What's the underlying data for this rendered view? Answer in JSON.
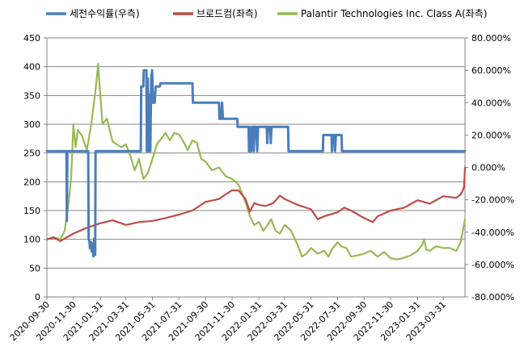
{
  "chart_data": {
    "type": "line",
    "x_ticks": [
      "2020-09-30",
      "2020-11-30",
      "2021-01-31",
      "2021-03-31",
      "2021-05-31",
      "2021-07-31",
      "2021-09-30",
      "2021-11-30",
      "2022-01-31",
      "2022-03-31",
      "2022-05-31",
      "2022-07-31",
      "2022-09-30",
      "2022-11-30",
      "2023-01-31",
      "2023-03-31"
    ],
    "x_range": [
      "2020-09-30",
      "2023-05-20"
    ],
    "y_left": {
      "range": [
        0,
        450
      ],
      "ticks": [
        "0",
        "50",
        "100",
        "150",
        "200",
        "250",
        "300",
        "350",
        "400",
        "450"
      ]
    },
    "y_right": {
      "range": [
        -80,
        80
      ],
      "ticks": [
        "-80.000%",
        "-60.000%",
        "-40.000%",
        "-20.000%",
        "0.000%",
        "20.000%",
        "40.000%",
        "60.000%",
        "80.000%"
      ]
    },
    "grid": true,
    "legend_position": "top",
    "series": [
      {
        "name": "세전수익률(우측)",
        "axis": "right",
        "color": "#4a7ebb",
        "points": [
          [
            "2020-09-30",
            10
          ],
          [
            "2020-11-14",
            10
          ],
          [
            "2020-11-15",
            -33
          ],
          [
            "2020-11-16",
            10
          ],
          [
            "2021-01-03",
            10
          ],
          [
            "2021-01-04",
            -44
          ],
          [
            "2021-01-06",
            -46
          ],
          [
            "2021-01-07",
            -50
          ],
          [
            "2021-01-09",
            -46
          ],
          [
            "2021-01-11",
            -52
          ],
          [
            "2021-01-13",
            -47
          ],
          [
            "2021-01-15",
            -55
          ],
          [
            "2021-01-17",
            -44
          ],
          [
            "2021-01-19",
            -54
          ],
          [
            "2021-01-20",
            10
          ],
          [
            "2021-05-04",
            10
          ],
          [
            "2021-05-05",
            50
          ],
          [
            "2021-05-10",
            50
          ],
          [
            "2021-05-11",
            60
          ],
          [
            "2021-05-17",
            60
          ],
          [
            "2021-05-18",
            10
          ],
          [
            "2021-05-20",
            55
          ],
          [
            "2021-05-22",
            10
          ],
          [
            "2021-05-24",
            45
          ],
          [
            "2021-05-26",
            10
          ],
          [
            "2021-05-28",
            55
          ],
          [
            "2021-05-30",
            60
          ],
          [
            "2021-06-01",
            40
          ],
          [
            "2021-06-05",
            40
          ],
          [
            "2021-06-07",
            50
          ],
          [
            "2021-06-17",
            50
          ],
          [
            "2021-06-18",
            52
          ],
          [
            "2021-08-31",
            52
          ],
          [
            "2021-09-01",
            40
          ],
          [
            "2021-10-31",
            40
          ],
          [
            "2021-11-01",
            30
          ],
          [
            "2021-11-05",
            30
          ],
          [
            "2021-11-07",
            40
          ],
          [
            "2021-11-09",
            30
          ],
          [
            "2021-12-12",
            30
          ],
          [
            "2021-12-13",
            25
          ],
          [
            "2022-01-07",
            25
          ],
          [
            "2022-01-08",
            10
          ],
          [
            "2022-01-10",
            25
          ],
          [
            "2022-01-13",
            10
          ],
          [
            "2022-01-15",
            25
          ],
          [
            "2022-01-18",
            25
          ],
          [
            "2022-01-19",
            10
          ],
          [
            "2022-01-21",
            25
          ],
          [
            "2022-01-25",
            25
          ],
          [
            "2022-01-27",
            10
          ],
          [
            "2022-01-29",
            25
          ],
          [
            "2022-02-18",
            25
          ],
          [
            "2022-02-19",
            15
          ],
          [
            "2022-02-21",
            25
          ],
          [
            "2022-02-26",
            25
          ],
          [
            "2022-02-27",
            15
          ],
          [
            "2022-03-01",
            25
          ],
          [
            "2022-04-08",
            25
          ],
          [
            "2022-04-09",
            10
          ],
          [
            "2022-06-27",
            10
          ],
          [
            "2022-06-28",
            20
          ],
          [
            "2022-07-17",
            20
          ],
          [
            "2022-07-18",
            10
          ],
          [
            "2022-07-20",
            20
          ],
          [
            "2022-07-24",
            20
          ],
          [
            "2022-07-25",
            10
          ],
          [
            "2022-07-27",
            20
          ],
          [
            "2022-08-09",
            20
          ],
          [
            "2022-08-10",
            10
          ],
          [
            "2023-05-20",
            10
          ]
        ]
      },
      {
        "name": "브로드컴(좌측)",
        "axis": "left",
        "color": "#be4b48",
        "points": [
          [
            "2020-09-30",
            100
          ],
          [
            "2020-10-15",
            103
          ],
          [
            "2020-10-31",
            97
          ],
          [
            "2020-11-30",
            110
          ],
          [
            "2020-12-31",
            120
          ],
          [
            "2021-01-31",
            128
          ],
          [
            "2021-02-28",
            133
          ],
          [
            "2021-03-31",
            125
          ],
          [
            "2021-04-30",
            130
          ],
          [
            "2021-05-31",
            132
          ],
          [
            "2021-06-30",
            137
          ],
          [
            "2021-07-31",
            143
          ],
          [
            "2021-08-31",
            150
          ],
          [
            "2021-09-30",
            165
          ],
          [
            "2021-10-31",
            170
          ],
          [
            "2021-11-15",
            178
          ],
          [
            "2021-11-30",
            185
          ],
          [
            "2021-12-15",
            185
          ],
          [
            "2021-12-31",
            170
          ],
          [
            "2022-01-10",
            148
          ],
          [
            "2022-01-20",
            163
          ],
          [
            "2022-01-31",
            160
          ],
          [
            "2022-02-15",
            158
          ],
          [
            "2022-03-05",
            163
          ],
          [
            "2022-03-20",
            176
          ],
          [
            "2022-03-31",
            170
          ],
          [
            "2022-04-30",
            160
          ],
          [
            "2022-05-31",
            152
          ],
          [
            "2022-06-15",
            135
          ],
          [
            "2022-06-30",
            140
          ],
          [
            "2022-07-31",
            147
          ],
          [
            "2022-08-15",
            155
          ],
          [
            "2022-08-31",
            150
          ],
          [
            "2022-09-30",
            137
          ],
          [
            "2022-10-20",
            130
          ],
          [
            "2022-10-31",
            140
          ],
          [
            "2022-11-30",
            150
          ],
          [
            "2022-12-31",
            155
          ],
          [
            "2023-01-31",
            168
          ],
          [
            "2023-02-28",
            162
          ],
          [
            "2023-03-31",
            175
          ],
          [
            "2023-04-30",
            172
          ],
          [
            "2023-05-10",
            178
          ],
          [
            "2023-05-15",
            185
          ],
          [
            "2023-05-18",
            192
          ],
          [
            "2023-05-20",
            225
          ]
        ]
      },
      {
        "name": "Palantir Technologies Inc. Class A(좌측)",
        "axis": "left",
        "color": "#98b954",
        "points": [
          [
            "2020-09-30",
            100
          ],
          [
            "2020-10-15",
            104
          ],
          [
            "2020-10-31",
            100
          ],
          [
            "2020-11-10",
            115
          ],
          [
            "2020-11-20",
            170
          ],
          [
            "2020-11-25",
            210
          ],
          [
            "2020-11-30",
            300
          ],
          [
            "2020-12-05",
            260
          ],
          [
            "2020-12-10",
            290
          ],
          [
            "2020-12-20",
            280
          ],
          [
            "2020-12-31",
            255
          ],
          [
            "2021-01-10",
            300
          ],
          [
            "2021-01-20",
            360
          ],
          [
            "2021-01-26",
            405
          ],
          [
            "2021-01-28",
            380
          ],
          [
            "2021-02-05",
            300
          ],
          [
            "2021-02-15",
            310
          ],
          [
            "2021-02-28",
            270
          ],
          [
            "2021-03-10",
            265
          ],
          [
            "2021-03-20",
            260
          ],
          [
            "2021-03-31",
            265
          ],
          [
            "2021-04-10",
            245
          ],
          [
            "2021-04-20",
            220
          ],
          [
            "2021-04-30",
            240
          ],
          [
            "2021-05-10",
            205
          ],
          [
            "2021-05-20",
            215
          ],
          [
            "2021-05-31",
            240
          ],
          [
            "2021-06-10",
            265
          ],
          [
            "2021-06-20",
            275
          ],
          [
            "2021-06-30",
            285
          ],
          [
            "2021-07-10",
            272
          ],
          [
            "2021-07-20",
            285
          ],
          [
            "2021-07-31",
            282
          ],
          [
            "2021-08-10",
            270
          ],
          [
            "2021-08-20",
            255
          ],
          [
            "2021-08-31",
            272
          ],
          [
            "2021-09-10",
            268
          ],
          [
            "2021-09-20",
            240
          ],
          [
            "2021-09-30",
            235
          ],
          [
            "2021-10-15",
            220
          ],
          [
            "2021-10-31",
            225
          ],
          [
            "2021-11-15",
            210
          ],
          [
            "2021-11-30",
            205
          ],
          [
            "2021-12-15",
            195
          ],
          [
            "2021-12-31",
            165
          ],
          [
            "2022-01-10",
            140
          ],
          [
            "2022-01-20",
            125
          ],
          [
            "2022-01-31",
            130
          ],
          [
            "2022-02-10",
            115
          ],
          [
            "2022-02-20",
            125
          ],
          [
            "2022-02-28",
            135
          ],
          [
            "2022-03-10",
            115
          ],
          [
            "2022-03-20",
            110
          ],
          [
            "2022-03-31",
            125
          ],
          [
            "2022-04-15",
            115
          ],
          [
            "2022-04-30",
            90
          ],
          [
            "2022-05-10",
            70
          ],
          [
            "2022-05-20",
            75
          ],
          [
            "2022-05-31",
            85
          ],
          [
            "2022-06-15",
            75
          ],
          [
            "2022-06-30",
            80
          ],
          [
            "2022-07-10",
            70
          ],
          [
            "2022-07-20",
            85
          ],
          [
            "2022-07-31",
            95
          ],
          [
            "2022-08-10",
            87
          ],
          [
            "2022-08-20",
            85
          ],
          [
            "2022-08-31",
            70
          ],
          [
            "2022-09-15",
            72
          ],
          [
            "2022-09-30",
            75
          ],
          [
            "2022-10-15",
            80
          ],
          [
            "2022-10-31",
            70
          ],
          [
            "2022-11-15",
            78
          ],
          [
            "2022-11-30",
            67
          ],
          [
            "2022-12-15",
            65
          ],
          [
            "2022-12-31",
            68
          ],
          [
            "2023-01-15",
            72
          ],
          [
            "2023-01-31",
            80
          ],
          [
            "2023-02-10",
            90
          ],
          [
            "2023-02-15",
            100
          ],
          [
            "2023-02-20",
            82
          ],
          [
            "2023-02-28",
            80
          ],
          [
            "2023-03-15",
            88
          ],
          [
            "2023-03-31",
            85
          ],
          [
            "2023-04-15",
            85
          ],
          [
            "2023-04-30",
            80
          ],
          [
            "2023-05-10",
            95
          ],
          [
            "2023-05-15",
            115
          ],
          [
            "2023-05-20",
            135
          ]
        ]
      }
    ]
  }
}
